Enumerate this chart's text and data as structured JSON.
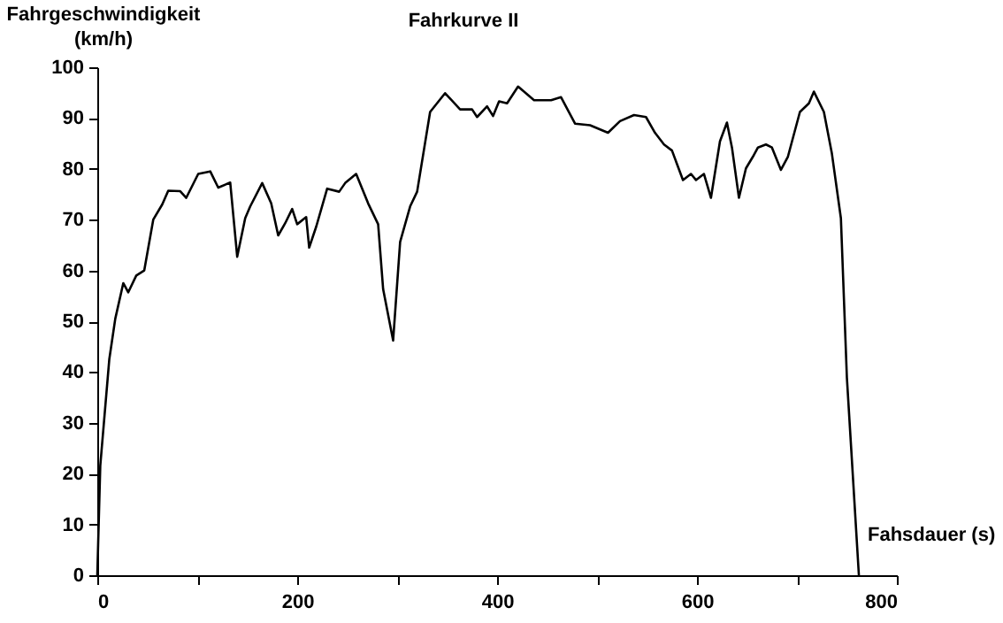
{
  "chart_data": {
    "type": "line",
    "title": "Fahrkurve II",
    "xlabel": "Fahsdauer (s)",
    "ylabel": "Fahrgeschwindigkeit (km/h)",
    "x": [
      0,
      3,
      12,
      18,
      26,
      31,
      39,
      47,
      56,
      65,
      71,
      83,
      89,
      101,
      113,
      121,
      133,
      140,
      148,
      153,
      165,
      174,
      181,
      188,
      195,
      200,
      209,
      212,
      219,
      230,
      242,
      248,
      259,
      271,
      281,
      286,
      296,
      303,
      313,
      320,
      333,
      348,
      363,
      375,
      380,
      390,
      396,
      402,
      410,
      421,
      437,
      454,
      464,
      478,
      493,
      511,
      523,
      537,
      549,
      558,
      567,
      575,
      586,
      594,
      599,
      607,
      614,
      623,
      630,
      635,
      642,
      649,
      656,
      661,
      669,
      675,
      684,
      691,
      703,
      712,
      717,
      727,
      735,
      744,
      750,
      762
    ],
    "series": [
      {
        "color": "#000000",
        "values": [
          0,
          21.6,
          42.5,
          50.5,
          57.5,
          55.7,
          59,
          60,
          70,
          73,
          75.7,
          75.6,
          74.3,
          79,
          79.5,
          76.3,
          77.3,
          62.7,
          70.3,
          72.6,
          77.2,
          73.2,
          66.9,
          69.3,
          72.1,
          69.1,
          70.5,
          64.5,
          68.6,
          76.1,
          75.5,
          77.2,
          79,
          73.2,
          69.1,
          56.3,
          46.2,
          65.6,
          72.6,
          75.5,
          91.2,
          94.9,
          91.7,
          91.7,
          90.2,
          92.3,
          90.4,
          93.3,
          92.9,
          96.2,
          93.5,
          93.5,
          94.1,
          88.9,
          88.6,
          87.1,
          89.4,
          90.6,
          90.2,
          87.1,
          84.8,
          83.6,
          77.8,
          79,
          77.8,
          79,
          74.3,
          85.4,
          89.1,
          84.2,
          74.3,
          80.1,
          82.4,
          84.2,
          84.8,
          84.2,
          79.8,
          82.4,
          91.2,
          92.9,
          95.2,
          91.2,
          83,
          70.3,
          38.9,
          0
        ]
      }
    ],
    "xlim": [
      0,
      800
    ],
    "xticks": [
      0,
      {
        "value": 100,
        "label": null
      },
      200,
      {
        "value": 300,
        "label": null
      },
      400,
      {
        "value": 500,
        "label": null
      },
      600,
      {
        "value": 700,
        "label": null
      },
      800
    ],
    "ylim": [
      0,
      100
    ],
    "yticks": [
      0,
      10,
      20,
      30,
      40,
      50,
      60,
      70,
      80,
      90,
      100
    ],
    "grid": false,
    "legend": false,
    "marker": "none",
    "line_style": "solid"
  }
}
